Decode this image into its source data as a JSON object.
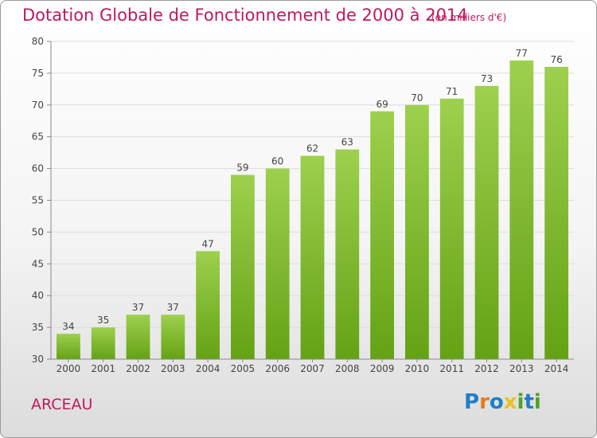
{
  "title": "Dotation Globale de Fonctionnement de 2000 à 2014",
  "subtitle": "(en milliers d'€)",
  "commune": "ARCEAU",
  "logo": {
    "text": "Proxiti",
    "letters": [
      {
        "ch": "P",
        "color": "#1e7fc8"
      },
      {
        "ch": "r",
        "color": "#e87a1e"
      },
      {
        "ch": "o",
        "color": "#1e7fc8"
      },
      {
        "ch": "x",
        "color": "#e8c21e"
      },
      {
        "ch": "i",
        "color": "#4aa32a"
      },
      {
        "ch": "t",
        "color": "#1e7fc8"
      },
      {
        "ch": "i",
        "color": "#4aa32a"
      }
    ]
  },
  "chart_data": {
    "type": "bar",
    "title": "Dotation Globale de Fonctionnement de 2000 à 2014",
    "subtitle": "(en milliers d'€)",
    "categories": [
      "2000",
      "2001",
      "2002",
      "2003",
      "2004",
      "2005",
      "2006",
      "2007",
      "2008",
      "2009",
      "2010",
      "2011",
      "2012",
      "2013",
      "2014"
    ],
    "values": [
      34,
      35,
      37,
      37,
      47,
      59,
      60,
      62,
      63,
      69,
      70,
      71,
      73,
      77,
      76
    ],
    "ylim": [
      30,
      80
    ],
    "yticks": [
      30,
      35,
      40,
      45,
      50,
      55,
      60,
      65,
      70,
      75,
      80
    ],
    "grid": true,
    "colors": {
      "bar_top": "#9dd04e",
      "bar_bottom": "#64a214",
      "grid": "#dcdcdc",
      "axis": "#888888",
      "text": "#444444"
    }
  }
}
